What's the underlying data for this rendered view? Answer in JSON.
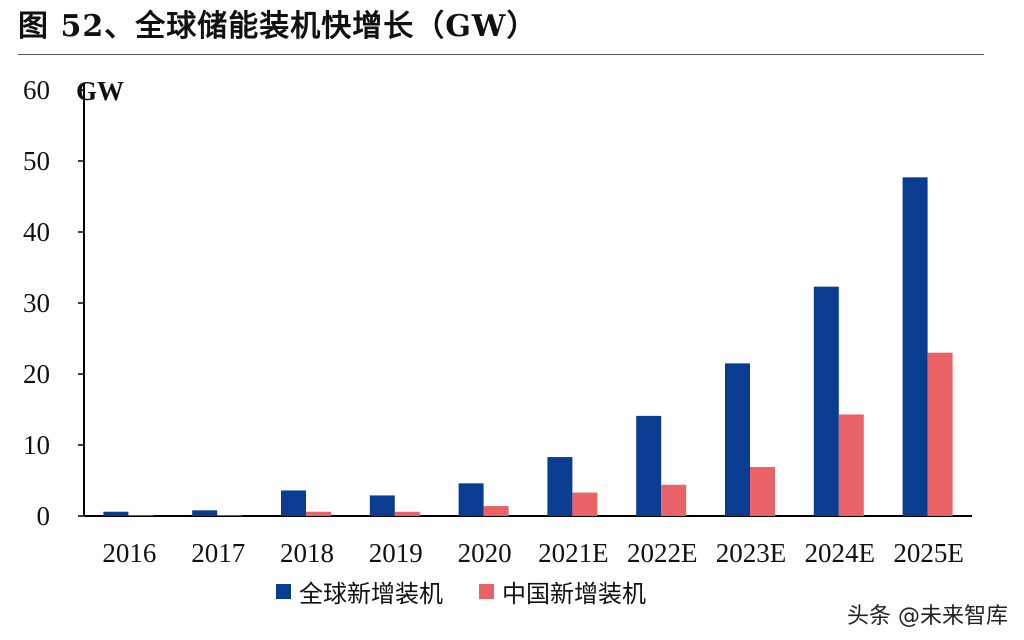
{
  "title": "图 52、全球储能装机快增长（GW）",
  "chart_data": {
    "type": "bar",
    "unit_label": "GW",
    "categories": [
      "2016",
      "2017",
      "2018",
      "2019",
      "2020",
      "2021E",
      "2022E",
      "2023E",
      "2024E",
      "2025E"
    ],
    "series": [
      {
        "name": "全球新增装机",
        "color": "#0a3d91",
        "values": [
          0.6,
          0.8,
          3.6,
          2.9,
          4.6,
          8.3,
          14.1,
          21.5,
          32.3,
          47.7
        ]
      },
      {
        "name": "中国新增装机",
        "color": "#e96266",
        "values": [
          0.1,
          0.1,
          0.6,
          0.6,
          1.4,
          3.3,
          4.4,
          6.9,
          14.3,
          23.0
        ]
      }
    ],
    "ylim": [
      0,
      60
    ],
    "yticks": [
      0,
      10,
      20,
      30,
      40,
      50,
      60
    ],
    "grid": false,
    "legend_position": "bottom-center"
  },
  "watermark": "头条 @未来智库"
}
